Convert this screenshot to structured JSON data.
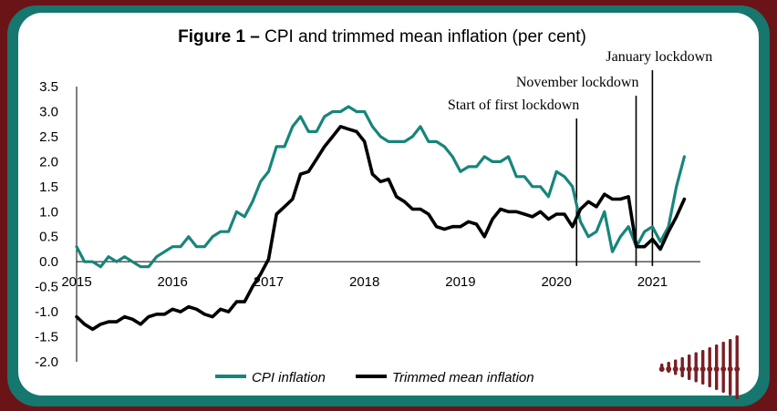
{
  "colors": {
    "cpi": "#17857a",
    "trimmed": "#000000",
    "frame_outer": "#6b1418",
    "frame_inner": "#16776f",
    "logo": "#7a1f24"
  },
  "logo": {
    "icon": "bar-logo-icon"
  },
  "chart_data": {
    "type": "line",
    "title_bold": "Figure 1 –",
    "title_rest": " CPI and trimmed mean inflation (per cent)",
    "xlabel": "",
    "ylabel": "",
    "x_unit": "year",
    "xlim": [
      2015.0,
      2021.5
    ],
    "ylim": [
      -2.0,
      3.5
    ],
    "y_ticks": [
      "3.5",
      "3.0",
      "2.5",
      "2.0",
      "1.5",
      "1.0",
      "0.5",
      "0.0",
      "-0.5",
      "-1.0",
      "-1.5",
      "-2.0"
    ],
    "y_tick_values": [
      3.5,
      3.0,
      2.5,
      2.0,
      1.5,
      1.0,
      0.5,
      0.0,
      -0.5,
      -1.0,
      -1.5,
      -2.0
    ],
    "x_ticks": [
      "2015",
      "2016",
      "2017",
      "2018",
      "2019",
      "2020",
      "2021"
    ],
    "x_tick_values": [
      2015,
      2016,
      2017,
      2018,
      2019,
      2020,
      2021
    ],
    "grid": false,
    "legend": "bottom",
    "series": [
      {
        "name": "CPI inflation",
        "color": "#17857a",
        "x": [
          2015.0,
          2015.083,
          2015.167,
          2015.25,
          2015.333,
          2015.417,
          2015.5,
          2015.583,
          2015.667,
          2015.75,
          2015.833,
          2015.917,
          2016.0,
          2016.083,
          2016.167,
          2016.25,
          2016.333,
          2016.417,
          2016.5,
          2016.583,
          2016.667,
          2016.75,
          2016.833,
          2016.917,
          2017.0,
          2017.083,
          2017.167,
          2017.25,
          2017.333,
          2017.417,
          2017.5,
          2017.583,
          2017.667,
          2017.75,
          2017.833,
          2017.917,
          2018.0,
          2018.083,
          2018.167,
          2018.25,
          2018.333,
          2018.417,
          2018.5,
          2018.583,
          2018.667,
          2018.75,
          2018.833,
          2018.917,
          2019.0,
          2019.083,
          2019.167,
          2019.25,
          2019.333,
          2019.417,
          2019.5,
          2019.583,
          2019.667,
          2019.75,
          2019.833,
          2019.917,
          2020.0,
          2020.083,
          2020.167,
          2020.25,
          2020.333,
          2020.417,
          2020.5,
          2020.583,
          2020.667,
          2020.75,
          2020.833,
          2020.917,
          2021.0,
          2021.083,
          2021.167,
          2021.25,
          2021.333
        ],
        "y": [
          0.3,
          0.0,
          0.0,
          -0.1,
          0.1,
          0.0,
          0.1,
          0.0,
          -0.1,
          -0.1,
          0.1,
          0.2,
          0.3,
          0.3,
          0.5,
          0.3,
          0.3,
          0.5,
          0.6,
          0.6,
          1.0,
          0.9,
          1.2,
          1.6,
          1.8,
          2.3,
          2.3,
          2.7,
          2.9,
          2.6,
          2.6,
          2.9,
          3.0,
          3.0,
          3.1,
          3.0,
          3.0,
          2.7,
          2.5,
          2.4,
          2.4,
          2.4,
          2.5,
          2.7,
          2.4,
          2.4,
          2.3,
          2.1,
          1.8,
          1.9,
          1.9,
          2.1,
          2.0,
          2.0,
          2.1,
          1.7,
          1.7,
          1.5,
          1.5,
          1.3,
          1.8,
          1.7,
          1.5,
          0.8,
          0.5,
          0.6,
          1.0,
          0.2,
          0.5,
          0.7,
          0.3,
          0.6,
          0.7,
          0.4,
          0.7,
          1.5,
          2.1
        ]
      },
      {
        "name": "Trimmed mean inflation",
        "color": "#000000",
        "x": [
          2015.0,
          2015.083,
          2015.167,
          2015.25,
          2015.333,
          2015.417,
          2015.5,
          2015.583,
          2015.667,
          2015.75,
          2015.833,
          2015.917,
          2016.0,
          2016.083,
          2016.167,
          2016.25,
          2016.333,
          2016.417,
          2016.5,
          2016.583,
          2016.667,
          2016.75,
          2016.833,
          2016.917,
          2017.0,
          2017.083,
          2017.167,
          2017.25,
          2017.333,
          2017.417,
          2017.5,
          2017.583,
          2017.667,
          2017.75,
          2017.833,
          2017.917,
          2018.0,
          2018.083,
          2018.167,
          2018.25,
          2018.333,
          2018.417,
          2018.5,
          2018.583,
          2018.667,
          2018.75,
          2018.833,
          2018.917,
          2019.0,
          2019.083,
          2019.167,
          2019.25,
          2019.333,
          2019.417,
          2019.5,
          2019.583,
          2019.667,
          2019.75,
          2019.833,
          2019.917,
          2020.0,
          2020.083,
          2020.167,
          2020.25,
          2020.333,
          2020.417,
          2020.5,
          2020.583,
          2020.667,
          2020.75,
          2020.833,
          2020.917,
          2021.0,
          2021.083,
          2021.167,
          2021.25,
          2021.333
        ],
        "y": [
          -1.1,
          -1.25,
          -1.35,
          -1.25,
          -1.2,
          -1.2,
          -1.1,
          -1.15,
          -1.25,
          -1.1,
          -1.05,
          -1.05,
          -0.95,
          -1.0,
          -0.9,
          -0.95,
          -1.05,
          -1.1,
          -0.95,
          -1.0,
          -0.8,
          -0.8,
          -0.5,
          -0.25,
          0.05,
          0.95,
          1.1,
          1.25,
          1.75,
          1.8,
          2.05,
          2.3,
          2.5,
          2.7,
          2.65,
          2.6,
          2.4,
          1.75,
          1.6,
          1.65,
          1.3,
          1.2,
          1.05,
          1.05,
          0.95,
          0.7,
          0.65,
          0.7,
          0.7,
          0.8,
          0.75,
          0.5,
          0.85,
          1.05,
          1.0,
          1.0,
          0.95,
          0.9,
          1.0,
          0.85,
          0.95,
          0.95,
          0.7,
          1.05,
          1.2,
          1.1,
          1.35,
          1.25,
          1.25,
          1.3,
          0.3,
          0.3,
          0.45,
          0.25,
          0.6,
          0.9,
          1.25
        ]
      }
    ],
    "annotations": [
      {
        "text": "Start of first lockdown",
        "x": 2020.21
      },
      {
        "text": "November lockdown",
        "x": 2020.83
      },
      {
        "text": "January lockdown",
        "x": 2021.0
      }
    ]
  }
}
